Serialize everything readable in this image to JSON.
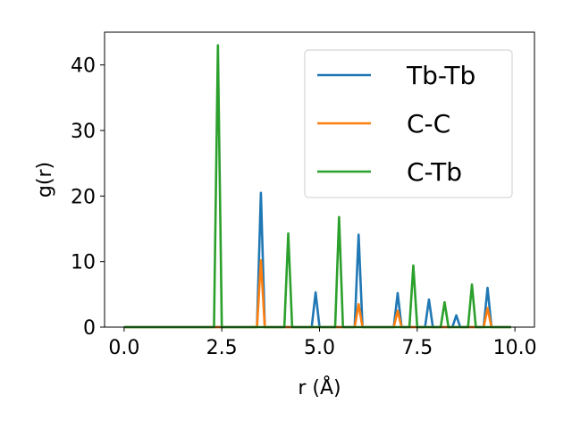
{
  "chart_data": {
    "type": "line",
    "title": "",
    "xlabel": "r (Å)",
    "ylabel": "g(r)",
    "xlim": [
      -0.5,
      10.5
    ],
    "ylim": [
      0,
      45
    ],
    "xticks": [
      0.0,
      2.5,
      5.0,
      7.5,
      10.0
    ],
    "xtick_labels": [
      "0.0",
      "2.5",
      "5.0",
      "7.5",
      "10.0"
    ],
    "yticks": [
      0,
      10,
      20,
      30,
      40
    ],
    "ytick_labels": [
      "0",
      "10",
      "20",
      "30",
      "40"
    ],
    "grid": false,
    "legend": {
      "position": "top-right",
      "entries": [
        "Tb-Tb",
        "C-C",
        "C-Tb"
      ]
    },
    "series": [
      {
        "name": "Tb-Tb",
        "color": "#1f77b4",
        "x": [
          0.0,
          3.4,
          3.5,
          3.6,
          4.8,
          4.9,
          5.0,
          5.9,
          6.0,
          6.1,
          6.9,
          7.0,
          7.1,
          7.7,
          7.8,
          7.9,
          8.4,
          8.5,
          8.6,
          9.2,
          9.3,
          9.4,
          9.9
        ],
        "y": [
          0,
          0,
          20.5,
          0,
          0,
          5.3,
          0,
          0,
          14.1,
          0,
          0,
          5.2,
          0,
          0,
          4.2,
          0,
          0,
          1.8,
          0,
          0,
          6.0,
          0,
          0
        ]
      },
      {
        "name": "C-C",
        "color": "#ff7f0e",
        "x": [
          0.0,
          3.4,
          3.5,
          3.6,
          5.9,
          6.0,
          6.1,
          6.9,
          7.0,
          7.1,
          9.2,
          9.3,
          9.4,
          9.9
        ],
        "y": [
          0,
          0,
          10.2,
          0,
          0,
          3.5,
          0,
          0,
          2.5,
          0,
          0,
          2.9,
          0,
          0
        ]
      },
      {
        "name": "C-Tb",
        "color": "#2ca02c",
        "x": [
          0.0,
          2.3,
          2.4,
          2.5,
          4.1,
          4.2,
          4.3,
          5.4,
          5.5,
          5.6,
          7.3,
          7.4,
          7.5,
          8.1,
          8.2,
          8.3,
          8.8,
          8.9,
          9.0,
          9.9
        ],
        "y": [
          0,
          0,
          43.0,
          0,
          0,
          14.3,
          0,
          0,
          16.8,
          0,
          0,
          9.4,
          0,
          0,
          3.8,
          0,
          0,
          6.5,
          0,
          0
        ]
      }
    ]
  }
}
